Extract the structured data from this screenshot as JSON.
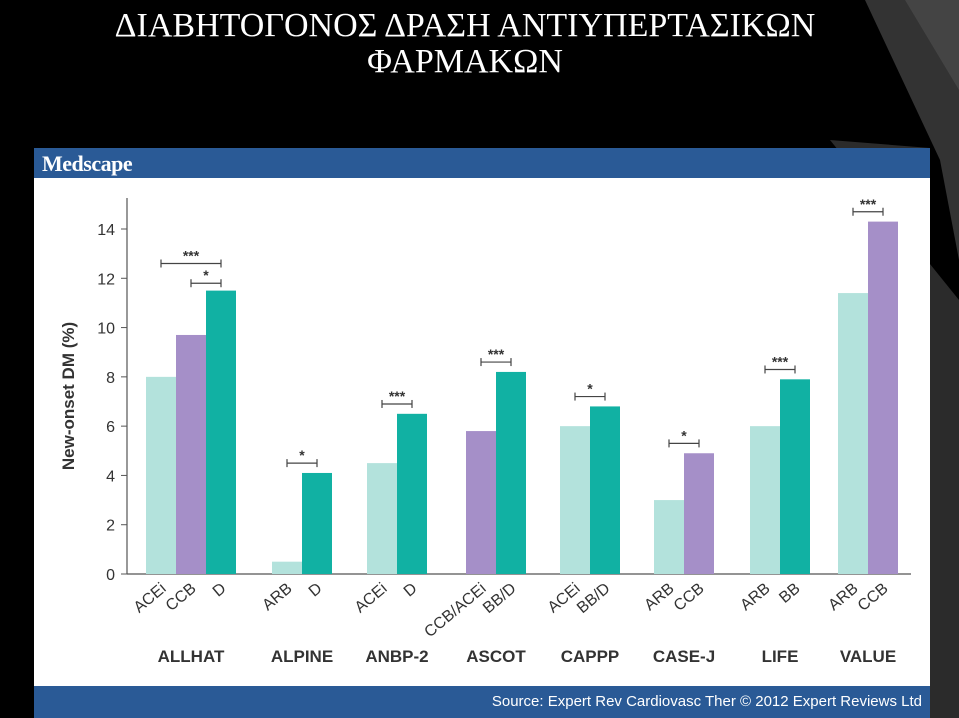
{
  "slide": {
    "title_line1": "ΔΙΑΒΗΤΟΓΟΝΟΣ ΔΡΑΣΗ ΑΝΤΙΥΠΕΡΤΑΣΙΚΩΝ",
    "title_line2": "ΦΑΡΜΑΚΩΝ"
  },
  "panel": {
    "brand": "Medscape",
    "source": "Source: Expert Rev Cardiovasc Ther © 2012 Expert Reviews Ltd"
  },
  "colors": {
    "light_teal": "#b3e2dc",
    "purple": "#a58fc8",
    "teal": "#11b1a3",
    "header_blue": "#2a5a96"
  },
  "chart_data": {
    "type": "bar",
    "ylabel": "New-onset DM (%)",
    "ylim": [
      0,
      14
    ],
    "yticks": [
      0,
      2,
      4,
      6,
      8,
      10,
      12,
      14
    ],
    "grid": false,
    "groups": [
      {
        "name": "ALLHAT",
        "bars": [
          {
            "label": "ACEi",
            "value": 8.0,
            "color": "light_teal"
          },
          {
            "label": "CCB",
            "value": 9.7,
            "color": "purple"
          },
          {
            "label": "D",
            "value": 11.5,
            "color": "teal"
          }
        ],
        "significance": [
          {
            "text": "***",
            "from": 0,
            "to": 2,
            "level": 12.6
          },
          {
            "text": "*",
            "from": 1,
            "to": 2,
            "level": 11.8
          }
        ]
      },
      {
        "name": "ALPINE",
        "bars": [
          {
            "label": "ARB",
            "value": 0.5,
            "color": "light_teal"
          },
          {
            "label": "D",
            "value": 4.1,
            "color": "teal"
          }
        ],
        "significance": [
          {
            "text": "*",
            "from": 0,
            "to": 1,
            "level": 4.5
          }
        ]
      },
      {
        "name": "ANBP-2",
        "bars": [
          {
            "label": "ACEi",
            "value": 4.5,
            "color": "light_teal"
          },
          {
            "label": "D",
            "value": 6.5,
            "color": "teal"
          }
        ],
        "significance": [
          {
            "text": "***",
            "from": 0,
            "to": 1,
            "level": 6.9
          }
        ]
      },
      {
        "name": "ASCOT",
        "bars": [
          {
            "label": "CCB/ACEi",
            "value": 5.8,
            "color": "purple"
          },
          {
            "label": "BB/D",
            "value": 8.2,
            "color": "teal"
          }
        ],
        "significance": [
          {
            "text": "***",
            "from": 0,
            "to": 1,
            "level": 8.6
          }
        ]
      },
      {
        "name": "CAPPP",
        "bars": [
          {
            "label": "ACEi",
            "value": 6.0,
            "color": "light_teal"
          },
          {
            "label": "BB/D",
            "value": 6.8,
            "color": "teal"
          }
        ],
        "significance": [
          {
            "text": "*",
            "from": 0,
            "to": 1,
            "level": 7.2
          }
        ]
      },
      {
        "name": "CASE-J",
        "bars": [
          {
            "label": "ARB",
            "value": 3.0,
            "color": "light_teal"
          },
          {
            "label": "CCB",
            "value": 4.9,
            "color": "purple"
          }
        ],
        "significance": [
          {
            "text": "*",
            "from": 0,
            "to": 1,
            "level": 5.3
          }
        ]
      },
      {
        "name": "LIFE",
        "bars": [
          {
            "label": "ARB",
            "value": 6.0,
            "color": "light_teal"
          },
          {
            "label": "BB",
            "value": 7.9,
            "color": "teal"
          }
        ],
        "significance": [
          {
            "text": "***",
            "from": 0,
            "to": 1,
            "level": 8.3
          }
        ]
      },
      {
        "name": "VALUE",
        "bars": [
          {
            "label": "ARB",
            "value": 11.4,
            "color": "light_teal"
          },
          {
            "label": "CCB",
            "value": 14.3,
            "color": "purple"
          }
        ],
        "significance": [
          {
            "text": "***",
            "from": 0,
            "to": 1,
            "level": 14.7
          }
        ]
      }
    ]
  }
}
